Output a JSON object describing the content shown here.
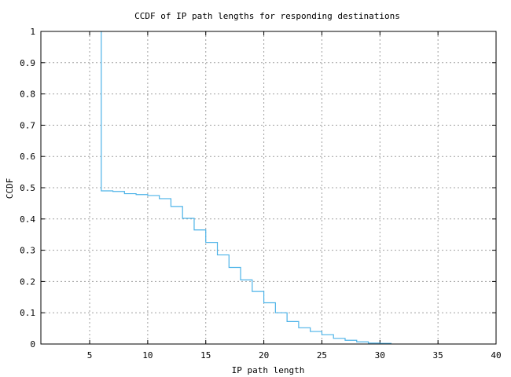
{
  "chart_data": {
    "type": "line",
    "title": "CCDF of IP path lengths for responding destinations",
    "xlabel": "IP path length",
    "ylabel": "CCDF",
    "xlim": [
      0.8,
      40
    ],
    "ylim": [
      0,
      1
    ],
    "grid": true,
    "xticks": [
      5,
      10,
      15,
      20,
      25,
      30,
      35,
      40
    ],
    "yticks": [
      0,
      0.1,
      0.2,
      0.3,
      0.4,
      0.5,
      0.6,
      0.7,
      0.8,
      0.9,
      1
    ],
    "ytick_labels": [
      "0",
      "0.1",
      "0.2",
      "0.3",
      "0.4",
      "0.5",
      "0.6",
      "0.7",
      "0.8",
      "0.9",
      "1"
    ],
    "series": [
      {
        "name": "CCDF",
        "color": "#4db3e8",
        "step": true,
        "x": [
          6,
          6,
          7,
          8,
          9,
          10,
          11,
          12,
          13,
          14,
          15,
          16,
          17,
          18,
          19,
          20,
          21,
          22,
          23,
          24,
          25,
          26,
          27,
          28,
          29,
          30,
          31
        ],
        "y": [
          1,
          0.49,
          0.488,
          0.481,
          0.478,
          0.475,
          0.465,
          0.44,
          0.402,
          0.365,
          0.325,
          0.285,
          0.245,
          0.205,
          0.168,
          0.132,
          0.1,
          0.072,
          0.052,
          0.04,
          0.03,
          0.018,
          0.012,
          0.007,
          0.003,
          0.002,
          0.002
        ]
      }
    ]
  }
}
